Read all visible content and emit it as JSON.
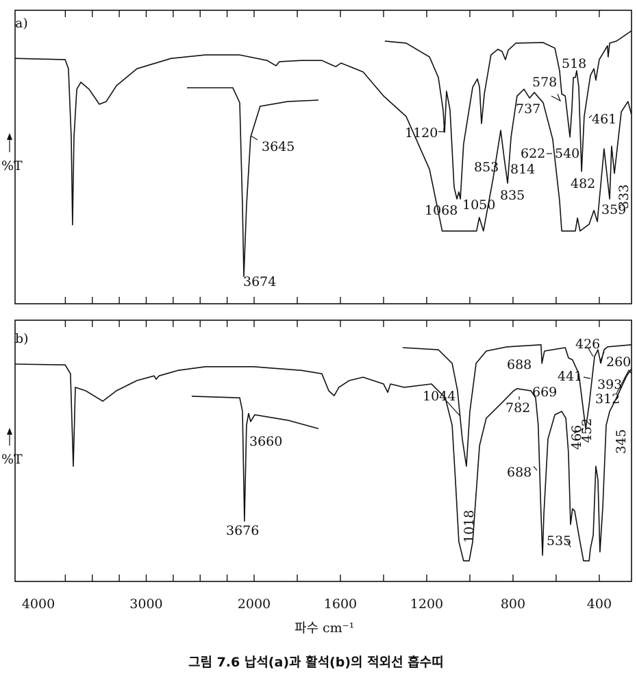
{
  "chart_data": {
    "type": "line",
    "title": "그림 7.6  납석(a)과 활석(b)의 적외선 흡수띠",
    "xlabel": "파수 cm⁻¹",
    "ylabel": "%T",
    "xlim": [
      4216,
      251
    ],
    "ylim": [
      0,
      100
    ],
    "x_tick_labels": [
      "4000",
      "3000",
      "2000",
      "1600",
      "1200",
      "800",
      "400"
    ],
    "x_ticks": [
      4000,
      3000,
      2000,
      1600,
      1200,
      800,
      400
    ],
    "grid": false,
    "panels": [
      {
        "label": "a)",
        "ylabel": "%T",
        "series": [
          {
            "name": "main",
            "points": [
              [
                4216,
                83.6
              ],
              [
                3752,
                83.2
              ],
              [
                3721,
                80.1
              ],
              [
                3695,
                56.8
              ],
              [
                3683,
                26.9
              ],
              [
                3670,
                56.8
              ],
              [
                3644,
                73.1
              ],
              [
                3606,
                75.5
              ],
              [
                3530,
                73.1
              ],
              [
                3435,
                68.0
              ],
              [
                3371,
                68.9
              ],
              [
                3276,
                74.3
              ],
              [
                3086,
                80.1
              ],
              [
                2768,
                83.6
              ],
              [
                2451,
                84.8
              ],
              [
                2133,
                84.8
              ],
              [
                1940,
                82.9
              ],
              [
                1898,
                81.1
              ],
              [
                1883,
                82.5
              ],
              [
                1781,
                82.9
              ],
              [
                1686,
                82.9
              ],
              [
                1638,
                81.3
              ],
              [
                1622,
                80.8
              ],
              [
                1597,
                82.0
              ],
              [
                1495,
                79.0
              ],
              [
                1400,
                70.8
              ],
              [
                1295,
                63.8
              ],
              [
                1187,
                45.8
              ],
              [
                1128,
                24.8
              ],
              [
                969,
                24.8
              ],
              [
                956,
                29.4
              ],
              [
                937,
                24.8
              ],
              [
                892,
                42.8
              ],
              [
                857,
                59.1
              ],
              [
                841,
                49.8
              ],
              [
                825,
                41.1
              ],
              [
                809,
                56.8
              ],
              [
                781,
                70.8
              ],
              [
                749,
                73.1
              ],
              [
                723,
                70.1
              ],
              [
                701,
                72.0
              ],
              [
                660,
                68.5
              ],
              [
                616,
                56.1
              ],
              [
                584,
                35.0
              ],
              [
                574,
                24.8
              ],
              [
                511,
                24.8
              ],
              [
                501,
                29.2
              ],
              [
                489,
                24.8
              ],
              [
                447,
                27.1
              ],
              [
                425,
                31.8
              ],
              [
                409,
                28.0
              ],
              [
                378,
                52.8
              ],
              [
                352,
                35.7
              ],
              [
                343,
                53.7
              ],
              [
                330,
                44.4
              ],
              [
                298,
                65.4
              ],
              [
                267,
                68.9
              ],
              [
                251,
                64.5
              ]
            ]
          },
          {
            "name": "expanded-low-wavenumber",
            "points": [
              [
                1394,
                89.5
              ],
              [
                1295,
                88.8
              ],
              [
                1187,
                84.1
              ],
              [
                1146,
                77.1
              ],
              [
                1124,
                66.1
              ],
              [
                1117,
                58.4
              ],
              [
                1108,
                72.4
              ],
              [
                1092,
                66.1
              ],
              [
                1073,
                39.7
              ],
              [
                1060,
                35.7
              ],
              [
                1051,
                38.1
              ],
              [
                1044,
                35.7
              ],
              [
                1029,
                54.4
              ],
              [
                987,
                73.8
              ],
              [
                965,
                76.6
              ],
              [
                955,
                73.8
              ],
              [
                946,
                61.4
              ],
              [
                933,
                71.5
              ],
              [
                902,
                84.8
              ],
              [
                870,
                86.7
              ],
              [
                851,
                86.0
              ],
              [
                835,
                83.2
              ],
              [
                822,
                86.4
              ],
              [
                787,
                88.8
              ],
              [
                660,
                89.0
              ],
              [
                606,
                87.1
              ],
              [
                584,
                79.4
              ],
              [
                574,
                71.5
              ],
              [
                558,
                70.8
              ],
              [
                536,
                56.8
              ],
              [
                527,
                66.1
              ],
              [
                520,
                77.1
              ],
              [
                511,
                77.1
              ],
              [
                505,
                79.4
              ],
              [
                495,
                73.8
              ],
              [
                482,
                45.1
              ],
              [
                470,
                63.8
              ],
              [
                441,
                77.8
              ],
              [
                425,
                80.1
              ],
              [
                416,
                76.2
              ],
              [
                400,
                83.2
              ],
              [
                362,
                87.9
              ],
              [
                359,
                84.1
              ],
              [
                352,
                88.8
              ],
              [
                320,
                89.5
              ],
              [
                251,
                93.0
              ]
            ]
          },
          {
            "name": "expanded-OH-stretch",
            "points": [
              [
                2622,
                73.6
              ],
              [
                2197,
                73.6
              ],
              [
                2133,
                68.5
              ],
              [
                2108,
                33.4
              ],
              [
                2095,
                9.3
              ],
              [
                2070,
                33.4
              ],
              [
                2032,
                56.8
              ],
              [
                1972,
                67.3
              ],
              [
                1844,
                68.9
              ],
              [
                1702,
                69.4
              ]
            ]
          }
        ],
        "annotations": [
          "3674",
          "3645",
          "1120",
          "1068",
          "1050",
          "853",
          "835",
          "814",
          "737",
          "622",
          "578",
          "540",
          "518",
          "482",
          "461",
          "359",
          "333"
        ]
      },
      {
        "label": "b)",
        "ylabel": "%T",
        "series": [
          {
            "name": "main",
            "points": [
              [
                4216,
                83.2
              ],
              [
                3752,
                82.9
              ],
              [
                3702,
                79.5
              ],
              [
                3676,
                44.1
              ],
              [
                3657,
                74.3
              ],
              [
                3562,
                73.0
              ],
              [
                3403,
                69.0
              ],
              [
                3276,
                73.0
              ],
              [
                3086,
                76.9
              ],
              [
                2927,
                78.7
              ],
              [
                2908,
                77.4
              ],
              [
                2882,
                78.7
              ],
              [
                2705,
                80.8
              ],
              [
                2451,
                82.2
              ],
              [
                2006,
                82.2
              ],
              [
                1781,
                80.8
              ],
              [
                1686,
                79.5
              ],
              [
                1654,
                73.0
              ],
              [
                1629,
                71.1
              ],
              [
                1607,
                74.3
              ],
              [
                1559,
                76.9
              ],
              [
                1495,
                78.2
              ],
              [
                1400,
                75.6
              ],
              [
                1381,
                72.4
              ],
              [
                1368,
                75.6
              ],
              [
                1305,
                74.3
              ],
              [
                1178,
                75.6
              ],
              [
                1114,
                70.3
              ],
              [
                1082,
                59.8
              ],
              [
                1067,
                38.8
              ],
              [
                1051,
                15.2
              ],
              [
                1029,
                7.9
              ],
              [
                1003,
                7.9
              ],
              [
                987,
                15.2
              ],
              [
                971,
                33.6
              ],
              [
                955,
                52.0
              ],
              [
                924,
                62.5
              ],
              [
                860,
                67.7
              ],
              [
                797,
                73.0
              ],
              [
                781,
                73.8
              ],
              [
                717,
                73.0
              ],
              [
                695,
                70.3
              ],
              [
                683,
                59.8
              ],
              [
                670,
                25.7
              ],
              [
                663,
                10.0
              ],
              [
                657,
                25.7
              ],
              [
                638,
                54.6
              ],
              [
                606,
                63.8
              ],
              [
                574,
                65.1
              ],
              [
                555,
                62.5
              ],
              [
                543,
                49.3
              ],
              [
                533,
                21.8
              ],
              [
                524,
                27.8
              ],
              [
                514,
                27.0
              ],
              [
                495,
                17.8
              ],
              [
                473,
                7.9
              ],
              [
                447,
                7.9
              ],
              [
                441,
                12.6
              ],
              [
                428,
                17.8
              ],
              [
                416,
                44.1
              ],
              [
                406,
                38.8
              ],
              [
                397,
                11.3
              ],
              [
                384,
                28.3
              ],
              [
                368,
                59.8
              ],
              [
                352,
                65.1
              ],
              [
                320,
                70.3
              ],
              [
                273,
                78.7
              ],
              [
                251,
                81.4
              ]
            ]
          },
          {
            "name": "expanded-low-wavenumber",
            "points": [
              [
                1311,
                89.5
              ],
              [
                1146,
                88.7
              ],
              [
                1082,
                83.5
              ],
              [
                1057,
                73.0
              ],
              [
                1035,
                54.6
              ],
              [
                1016,
                44.1
              ],
              [
                1000,
                65.1
              ],
              [
                971,
                83.5
              ],
              [
                924,
                88.2
              ],
              [
                828,
                89.8
              ],
              [
                670,
                90.6
              ],
              [
                666,
                83.5
              ],
              [
                654,
                88.2
              ],
              [
                558,
                89.5
              ],
              [
                543,
                85.6
              ],
              [
                524,
                84.8
              ],
              [
                495,
                79.5
              ],
              [
                473,
                65.1
              ],
              [
                463,
                58.5
              ],
              [
                447,
                67.7
              ],
              [
                422,
                86.1
              ],
              [
                406,
                88.7
              ],
              [
                393,
                83.5
              ],
              [
                378,
                88.7
              ],
              [
                362,
                89.8
              ],
              [
                251,
                90.6
              ]
            ]
          },
          {
            "name": "expanded-OH-stretch",
            "points": [
              [
                2578,
                70.9
              ],
              [
                2133,
                70.3
              ],
              [
                2108,
                65.1
              ],
              [
                2089,
                23.1
              ],
              [
                2070,
                59.8
              ],
              [
                2051,
                64.3
              ],
              [
                2032,
                61.2
              ],
              [
                1997,
                63.8
              ],
              [
                1844,
                61.7
              ],
              [
                1702,
                58.5
              ]
            ]
          }
        ],
        "annotations": [
          "3676",
          "3660",
          "1044",
          "1018",
          "782",
          "688",
          "669",
          "688",
          "535",
          "466",
          "452",
          "441",
          "426",
          "393",
          "312",
          "260",
          "345"
        ]
      }
    ]
  }
}
